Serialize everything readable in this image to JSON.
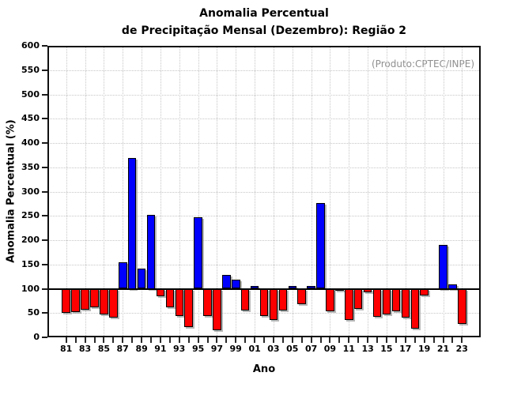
{
  "title": {
    "line1": "Anomalia Percentual",
    "line2": "de Precipitação Mensal (Dezembro): Região 2"
  },
  "chart_data": {
    "type": "bar",
    "title": "Anomalia Percentual de Precipitação Mensal (Dezembro): Região 2",
    "xlabel": "Ano",
    "ylabel": "Anomalia Percentual (%)",
    "annotation": "(Produto:CPTEC/INPE)",
    "ylim": [
      0,
      600
    ],
    "ytick_step": 50,
    "baseline": 100,
    "grid": "dotted",
    "legend": "none",
    "bar_color_above_baseline": "#0000ff",
    "bar_color_below_baseline": "#ff0000",
    "xtick_label_every": 2,
    "categories": [
      "81",
      "82",
      "83",
      "84",
      "85",
      "86",
      "87",
      "88",
      "89",
      "90",
      "91",
      "92",
      "93",
      "94",
      "95",
      "96",
      "97",
      "98",
      "99",
      "00",
      "01",
      "02",
      "03",
      "04",
      "05",
      "06",
      "07",
      "08",
      "09",
      "10",
      "11",
      "12",
      "13",
      "14",
      "15",
      "16",
      "17",
      "18",
      "19",
      "20",
      "21",
      "22",
      "23"
    ],
    "values": [
      50,
      52,
      57,
      62,
      47,
      41,
      154,
      370,
      141,
      252,
      84,
      62,
      44,
      22,
      247,
      44,
      15,
      129,
      118,
      56,
      106,
      44,
      36,
      55,
      105,
      68,
      106,
      277,
      54,
      96,
      36,
      58,
      92,
      42,
      48,
      54,
      41,
      18,
      86,
      100,
      191,
      109,
      27
    ]
  }
}
